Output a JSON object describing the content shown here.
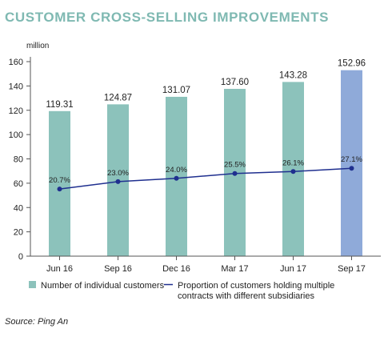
{
  "title": "CUSTOMER CROSS-SELLING IMPROVEMENTS",
  "source": "Source: Ping An",
  "colors": {
    "title": "#7fb9b2",
    "bar": "#8cc2bb",
    "bar_highlight": "#8faad9",
    "line": "#1f2f8f",
    "axis": "#555555",
    "grid": "#bbbbbb"
  },
  "chart_data": {
    "type": "bar",
    "ylabel": "million",
    "ylim": [
      0,
      160
    ],
    "yticks": [
      0,
      20,
      40,
      60,
      80,
      100,
      120,
      140,
      160
    ],
    "categories": [
      "Jun 16",
      "Sep 16",
      "Dec 16",
      "Mar 17",
      "Jun 17",
      "Sep 17"
    ],
    "series": [
      {
        "name": "Number of individual customers",
        "type": "bar",
        "values": [
          119.31,
          124.87,
          131.07,
          137.6,
          143.28,
          152.96
        ],
        "labels": [
          "119.31",
          "124.87",
          "131.07",
          "137.60",
          "143.28",
          "152.96"
        ],
        "highlight_index": 5
      },
      {
        "name": "Proportion of customers holding multiple contracts with different subsidiaries",
        "legend_lines": [
          "Proportion of customers holding multiple",
          "contracts with different subsidiaries"
        ],
        "type": "line",
        "values": [
          20.7,
          23.0,
          24.0,
          25.5,
          26.1,
          27.1
        ],
        "labels": [
          "20.7%",
          "23.0%",
          "24.0%",
          "25.5%",
          "26.1%",
          "27.1%"
        ],
        "unit": "%"
      }
    ],
    "grid": false,
    "legend_position": "bottom"
  }
}
